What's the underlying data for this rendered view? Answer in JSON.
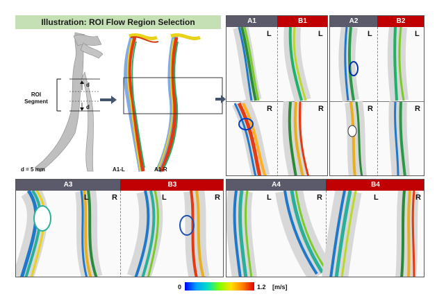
{
  "header": {
    "title": "Illustration: ROI Flow Region Selection"
  },
  "illustration": {
    "roi_label_line1": "ROI",
    "roi_label_line2": "Segment",
    "d_mark_top": "d",
    "d_mark_bottom": "d",
    "diameter_note": "d = 5 mm",
    "model_left_label": "A1-L",
    "model_right_label": "A1-R"
  },
  "top_panels": [
    {
      "id": "A1",
      "label": "A1",
      "side_top": "L",
      "side_bottom": "R",
      "header_color": "#5a5a6a"
    },
    {
      "id": "B1",
      "label": "B1",
      "side_top": "L",
      "side_bottom": "R",
      "header_color": "#c00000"
    },
    {
      "id": "A2",
      "label": "A2",
      "side_top": "L",
      "side_bottom": "R",
      "header_color": "#5a5a6a"
    },
    {
      "id": "B2",
      "label": "B2",
      "side_top": "L",
      "side_bottom": "R",
      "header_color": "#c00000"
    }
  ],
  "bottom_panels": [
    {
      "id": "A3",
      "label": "A3",
      "side_left": "L",
      "side_right": "R",
      "header_color": "#5a5a6a"
    },
    {
      "id": "B3",
      "label": "B3",
      "side_left": "L",
      "side_right": "R",
      "header_color": "#c00000"
    },
    {
      "id": "A4",
      "label": "A4",
      "side_left": "L",
      "side_right": "R",
      "header_color": "#5a5a6a"
    },
    {
      "id": "B4",
      "label": "B4",
      "side_left": "L",
      "side_right": "R",
      "header_color": "#c00000"
    }
  ],
  "colorbar": {
    "min": "0",
    "max": "1.2",
    "unit": "[m/s]",
    "colors": [
      "#0000ff",
      "#00a0ff",
      "#00e0c0",
      "#80ff00",
      "#ffe000",
      "#ff8000",
      "#e00000"
    ]
  }
}
